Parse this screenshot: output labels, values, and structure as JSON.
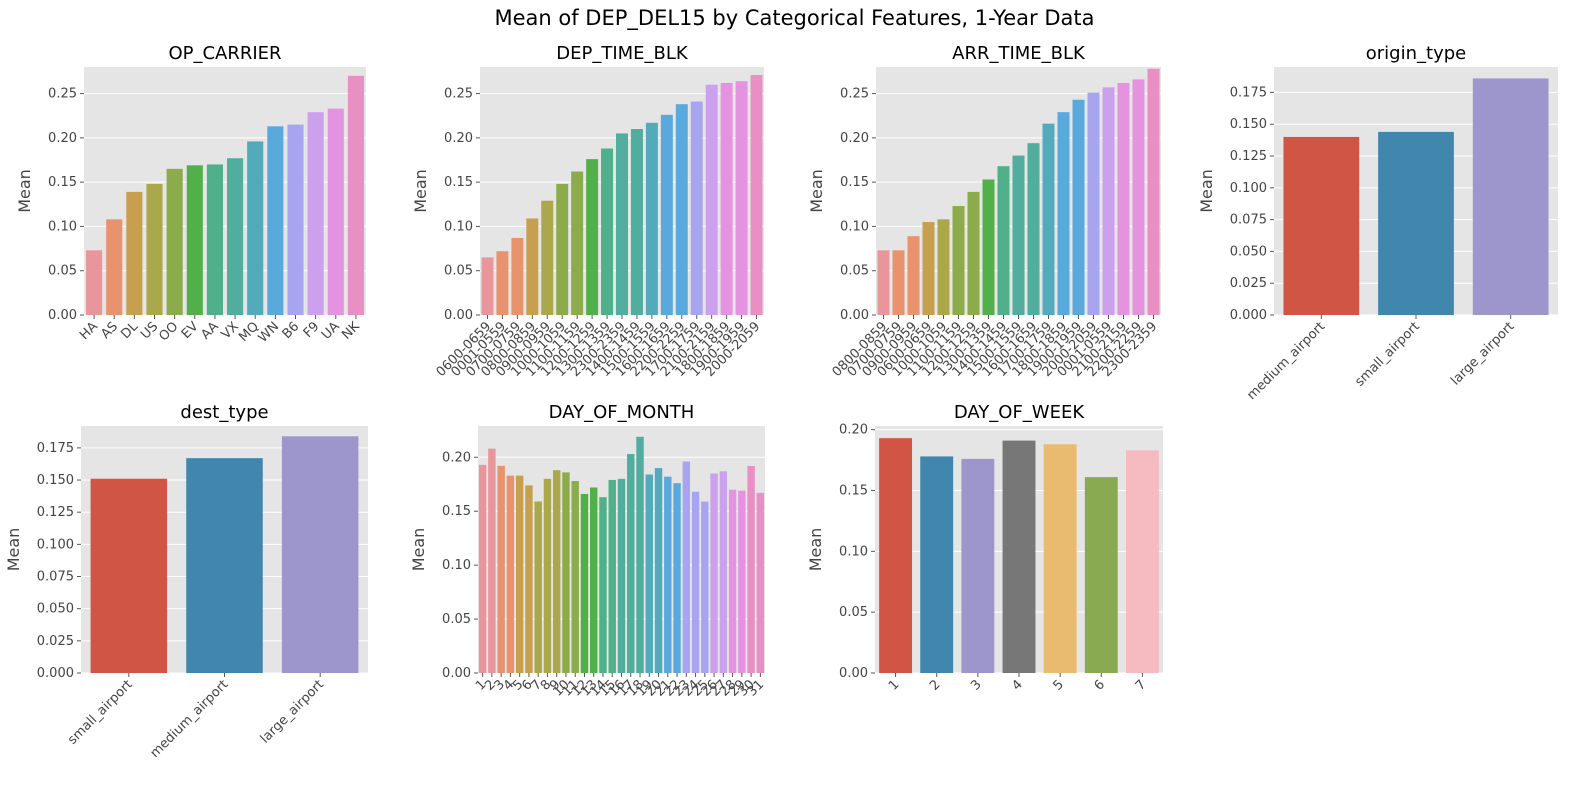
{
  "suptitle": "Mean of DEP_DEL15 by Categorical Features, 1-Year Data",
  "colors": {
    "panel_bg": "#e5e5e5",
    "grid": "#ffffff",
    "palette13": [
      "#e8969b",
      "#e8936d",
      "#c7a04f",
      "#aaa84b",
      "#8cac4b",
      "#52b04b",
      "#4fb08b",
      "#51ad9e",
      "#52aabb",
      "#5aa9dd",
      "#a7a5ef",
      "#cba1ee",
      "#e593e0",
      "#e88fc3"
    ],
    "ggplot": [
      "#d15544",
      "#4186ad",
      "#9d96cc",
      "#777777",
      "#e8bb70",
      "#8aaa52",
      "#f6bbc0"
    ]
  },
  "chart_data": [
    {
      "type": "bar",
      "title": "OP_CARRIER",
      "ylabel": "Mean",
      "ylim": [
        0,
        0.28
      ],
      "grid": true,
      "yticks": [
        "0.00",
        "0.05",
        "0.10",
        "0.15",
        "0.20",
        "0.25"
      ],
      "ytick_values": [
        0,
        0.05,
        0.1,
        0.15,
        0.2,
        0.25
      ],
      "categories": [
        "HA",
        "AS",
        "DL",
        "US",
        "OO",
        "EV",
        "AA",
        "VX",
        "MQ",
        "WN",
        "B6",
        "F9",
        "UA",
        "NK"
      ],
      "values": [
        0.073,
        0.108,
        0.139,
        0.148,
        0.165,
        0.169,
        0.17,
        0.177,
        0.196,
        0.213,
        0.215,
        0.229,
        0.233,
        0.27
      ],
      "palette": "rainbow",
      "label_rotation": 45
    },
    {
      "type": "bar",
      "title": "DEP_TIME_BLK",
      "ylabel": "Mean",
      "ylim": [
        0,
        0.28
      ],
      "grid": true,
      "yticks": [
        "0.00",
        "0.05",
        "0.10",
        "0.15",
        "0.20",
        "0.25"
      ],
      "ytick_values": [
        0,
        0.05,
        0.1,
        0.15,
        0.2,
        0.25
      ],
      "categories": [
        "0600-0659",
        "0001-0559",
        "0700-0759",
        "0800-0859",
        "0900-0959",
        "1000-1059",
        "1100-1159",
        "1200-1259",
        "1300-1359",
        "2300-2359",
        "1400-1459",
        "1500-1559",
        "1600-1659",
        "2200-2259",
        "1700-1759",
        "2100-2159",
        "1800-1859",
        "1900-1959",
        "2000-2059"
      ],
      "values": [
        0.065,
        0.072,
        0.087,
        0.109,
        0.129,
        0.148,
        0.162,
        0.176,
        0.188,
        0.205,
        0.21,
        0.217,
        0.226,
        0.238,
        0.241,
        0.26,
        0.262,
        0.264,
        0.271
      ],
      "palette": "rainbow",
      "label_rotation": 45
    },
    {
      "type": "bar",
      "title": "ARR_TIME_BLK",
      "ylabel": "Mean",
      "ylim": [
        0,
        0.28
      ],
      "grid": true,
      "yticks": [
        "0.00",
        "0.05",
        "0.10",
        "0.15",
        "0.20",
        "0.25"
      ],
      "ytick_values": [
        0,
        0.05,
        0.1,
        0.15,
        0.2,
        0.25
      ],
      "categories": [
        "0800-0859",
        "0700-0759",
        "0900-0959",
        "0600-0659",
        "1000-1059",
        "1100-1159",
        "1200-1259",
        "1300-1359",
        "1400-1459",
        "1500-1559",
        "1600-1659",
        "1700-1759",
        "1800-1859",
        "1900-1959",
        "2000-2059",
        "0001-0559",
        "2100-2159",
        "2200-2259",
        "2300-2359"
      ],
      "values": [
        0.073,
        0.073,
        0.089,
        0.105,
        0.108,
        0.123,
        0.139,
        0.153,
        0.168,
        0.18,
        0.194,
        0.216,
        0.229,
        0.243,
        0.251,
        0.257,
        0.262,
        0.266,
        0.278
      ],
      "palette": "rainbow",
      "label_rotation": 45
    },
    {
      "type": "bar",
      "title": "origin_type",
      "ylabel": "Mean",
      "ylim": [
        0,
        0.195
      ],
      "grid": true,
      "yticks": [
        "0.000",
        "0.025",
        "0.050",
        "0.075",
        "0.100",
        "0.125",
        "0.150",
        "0.175"
      ],
      "ytick_values": [
        0,
        0.025,
        0.05,
        0.075,
        0.1,
        0.125,
        0.15,
        0.175
      ],
      "categories": [
        "medium_airport",
        "small_airport",
        "large_airport"
      ],
      "values": [
        0.14,
        0.144,
        0.186
      ],
      "palette": "ggplot",
      "label_rotation": 45
    },
    {
      "type": "bar",
      "title": "dest_type",
      "ylabel": "Mean",
      "ylim": [
        0,
        0.192
      ],
      "grid": true,
      "yticks": [
        "0.000",
        "0.025",
        "0.050",
        "0.075",
        "0.100",
        "0.125",
        "0.150",
        "0.175"
      ],
      "ytick_values": [
        0,
        0.025,
        0.05,
        0.075,
        0.1,
        0.125,
        0.15,
        0.175
      ],
      "categories": [
        "small_airport",
        "medium_airport",
        "large_airport"
      ],
      "values": [
        0.151,
        0.167,
        0.184
      ],
      "palette": "ggplot",
      "label_rotation": 45
    },
    {
      "type": "bar",
      "title": "DAY_OF_MONTH",
      "ylabel": "Mean",
      "ylim": [
        0,
        0.229
      ],
      "grid": true,
      "yticks": [
        "0.00",
        "0.05",
        "0.10",
        "0.15",
        "0.20"
      ],
      "ytick_values": [
        0,
        0.05,
        0.1,
        0.15,
        0.2
      ],
      "categories": [
        "1",
        "2",
        "3",
        "4",
        "5",
        "6",
        "7",
        "8",
        "9",
        "10",
        "11",
        "12",
        "13",
        "14",
        "15",
        "16",
        "17",
        "18",
        "19",
        "20",
        "21",
        "22",
        "23",
        "24",
        "25",
        "26",
        "27",
        "28",
        "29",
        "30",
        "31"
      ],
      "values": [
        0.193,
        0.208,
        0.192,
        0.183,
        0.183,
        0.174,
        0.159,
        0.18,
        0.188,
        0.186,
        0.178,
        0.166,
        0.172,
        0.163,
        0.179,
        0.18,
        0.203,
        0.219,
        0.184,
        0.19,
        0.182,
        0.176,
        0.196,
        0.168,
        0.159,
        0.185,
        0.187,
        0.17,
        0.169,
        0.192,
        0.167
      ],
      "palette": "rainbow",
      "label_rotation": 45
    },
    {
      "type": "bar",
      "title": "DAY_OF_WEEK",
      "ylabel": "Mean",
      "ylim": [
        0,
        0.203
      ],
      "grid": true,
      "yticks": [
        "0.00",
        "0.05",
        "0.10",
        "0.15",
        "0.20"
      ],
      "ytick_values": [
        0,
        0.05,
        0.1,
        0.15,
        0.2
      ],
      "categories": [
        "1",
        "2",
        "3",
        "4",
        "5",
        "6",
        "7"
      ],
      "values": [
        0.193,
        0.178,
        0.176,
        0.191,
        0.188,
        0.161,
        0.183
      ],
      "palette": "ggplot",
      "label_rotation": 45
    }
  ]
}
